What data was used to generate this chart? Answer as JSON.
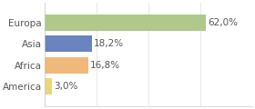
{
  "categories": [
    "America",
    "Africa",
    "Asia",
    "Europa"
  ],
  "values": [
    3.0,
    16.8,
    18.2,
    62.0
  ],
  "labels": [
    "3,0%",
    "16,8%",
    "18,2%",
    "62,0%"
  ],
  "bar_colors": [
    "#e8d87a",
    "#f0b87a",
    "#6a84c0",
    "#b0c88a"
  ],
  "background_color": "#ffffff",
  "plot_bg_color": "#ffffff",
  "xlim": [
    0,
    80
  ],
  "label_fontsize": 7.5,
  "tick_fontsize": 7.5,
  "bar_height": 0.75
}
